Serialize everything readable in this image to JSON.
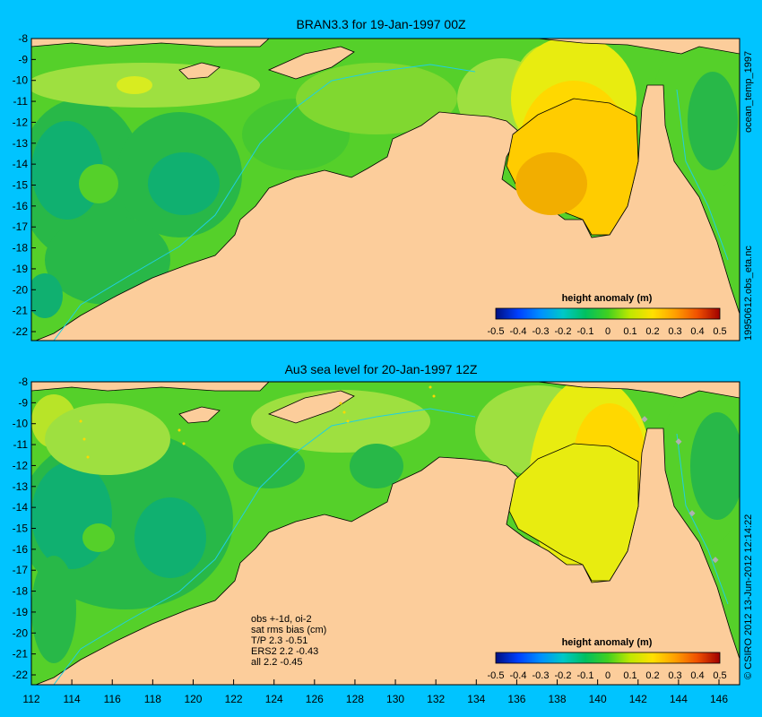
{
  "colors": {
    "background": "#00c4ff",
    "land": "#fccd9b",
    "ocean_base": "#55d02a",
    "coast": "#000000",
    "isobath": "#20d0e0"
  },
  "panels": [
    {
      "title": "BRAN3.3 for 19-Jan-1997 00Z",
      "side_label": "ocean_temp_1997",
      "side_label_2": "19950612.obs_eta.nc",
      "colorbar": {
        "title": "height anomaly (m)",
        "ticks": [
          "-0.5",
          "-0.4",
          "-0.3",
          "-0.2",
          "-0.1",
          "0",
          "0.1",
          "0.2",
          "0.3",
          "0.4",
          "0.5"
        ]
      },
      "y_ticks": [
        "-8",
        "-9",
        "-10",
        "-11",
        "-12",
        "-13",
        "-14",
        "-15",
        "-16",
        "-17",
        "-18",
        "-19",
        "-20",
        "-21",
        "-22"
      ]
    },
    {
      "title": "Au3 sea level  for 20-Jan-1997 12Z",
      "side_label": "© CSIRO 2012  13-Jun-2012 12:14:22",
      "colorbar": {
        "title": "height anomaly (m)",
        "ticks": [
          "-0.5",
          "-0.4",
          "-0.3",
          "-0.2",
          "-0.1",
          "0",
          "0.1",
          "0.2",
          "0.3",
          "0.4",
          "0.5"
        ]
      },
      "y_ticks": [
        "-8",
        "-9",
        "-10",
        "-11",
        "-12",
        "-13",
        "-14",
        "-15",
        "-16",
        "-17",
        "-18",
        "-19",
        "-20",
        "-21",
        "-22"
      ],
      "notes": [
        "obs +-1d, oi-2",
        "sat rms bias (cm)",
        "T/P  2.3 -0.51",
        "ERS2 2.2 -0.43",
        "all 2.2 -0.45"
      ]
    }
  ],
  "x_ticks": [
    "112",
    "114",
    "116",
    "118",
    "120",
    "122",
    "124",
    "126",
    "128",
    "130",
    "132",
    "134",
    "136",
    "138",
    "140",
    "142",
    "144",
    "146"
  ]
}
